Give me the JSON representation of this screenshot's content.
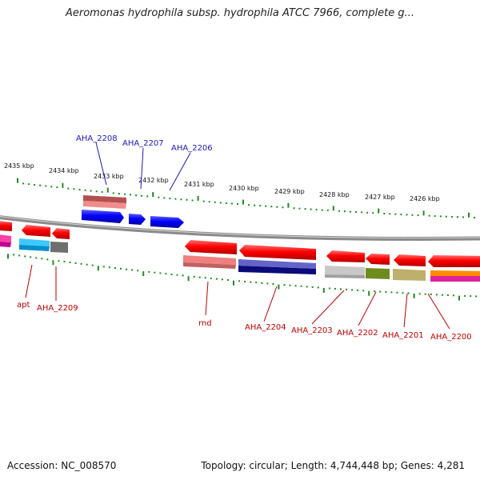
{
  "title": "Aeromonas hydrophila subsp. hydrophila ATCC 7966, complete g...",
  "footer": {
    "accession": "Accession: NC_008570",
    "summary": "Topology: circular; Length: 4,744,448 bp; Genes: 4,281"
  },
  "colors": {
    "backbone": "#8a8a8a",
    "ruler": "#1f8a1f",
    "forward_label": "#1a1ab8",
    "reverse_label": "#c00000"
  },
  "ruler_ticks": [
    "2435 kbp",
    "2434 kbp",
    "2433 kbp",
    "2432 kbp",
    "2431 kbp",
    "2430 kbp",
    "2429 kbp",
    "2428 kbp",
    "2427 kbp",
    "2426 kbp"
  ],
  "forward_genes": [
    "AHA_2208",
    "AHA_2207",
    "AHA_2206"
  ],
  "reverse_genes": [
    "apt",
    "AHA_2209",
    "rnd",
    "AHA_2204",
    "AHA_2203",
    "AHA_2202",
    "AHA_2201",
    "AHA_2200"
  ]
}
